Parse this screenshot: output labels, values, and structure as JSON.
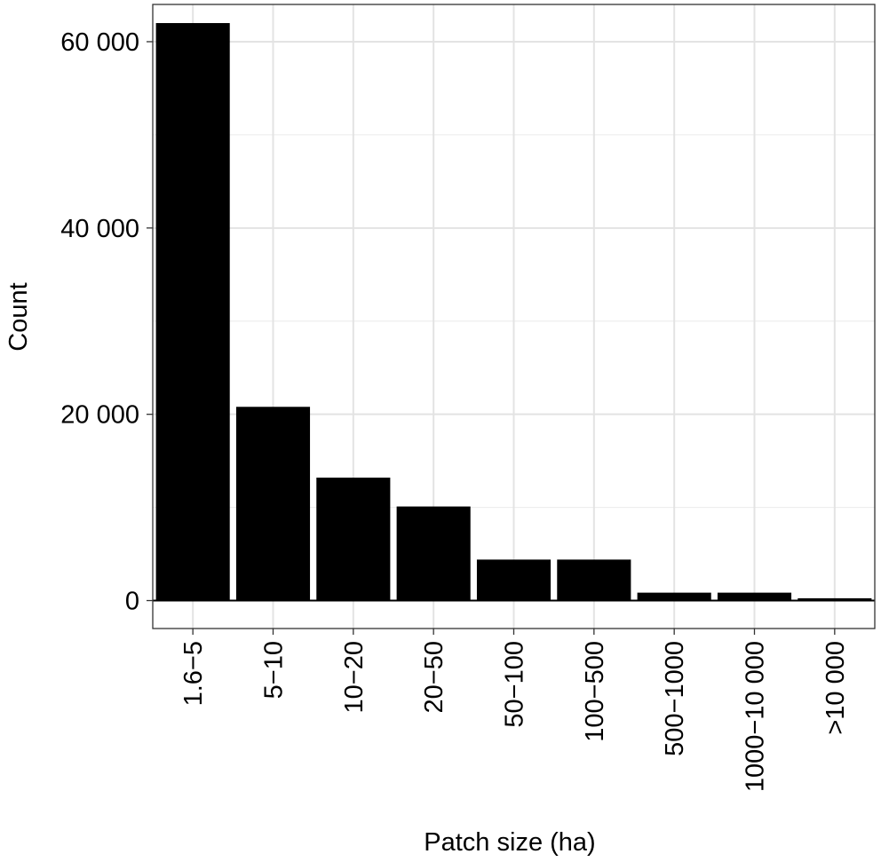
{
  "chart_data": {
    "type": "bar",
    "categories": [
      "1.6−5",
      "5−10",
      "10−20",
      "20−50",
      "50−100",
      "100−500",
      "500−1000",
      "1000−10 000",
      ">10 000"
    ],
    "values": [
      62000,
      20800,
      13200,
      10100,
      4400,
      4400,
      850,
      850,
      250
    ],
    "xlabel": "Patch size (ha)",
    "ylabel": "Count",
    "ylim": [
      -3000,
      64000
    ],
    "yticks": [
      0,
      20000,
      40000,
      60000
    ],
    "ytick_labels": [
      "0",
      "20 000",
      "40 000",
      "60 000"
    ],
    "grid": true,
    "bar_color": "#000000",
    "baseline": 0
  }
}
